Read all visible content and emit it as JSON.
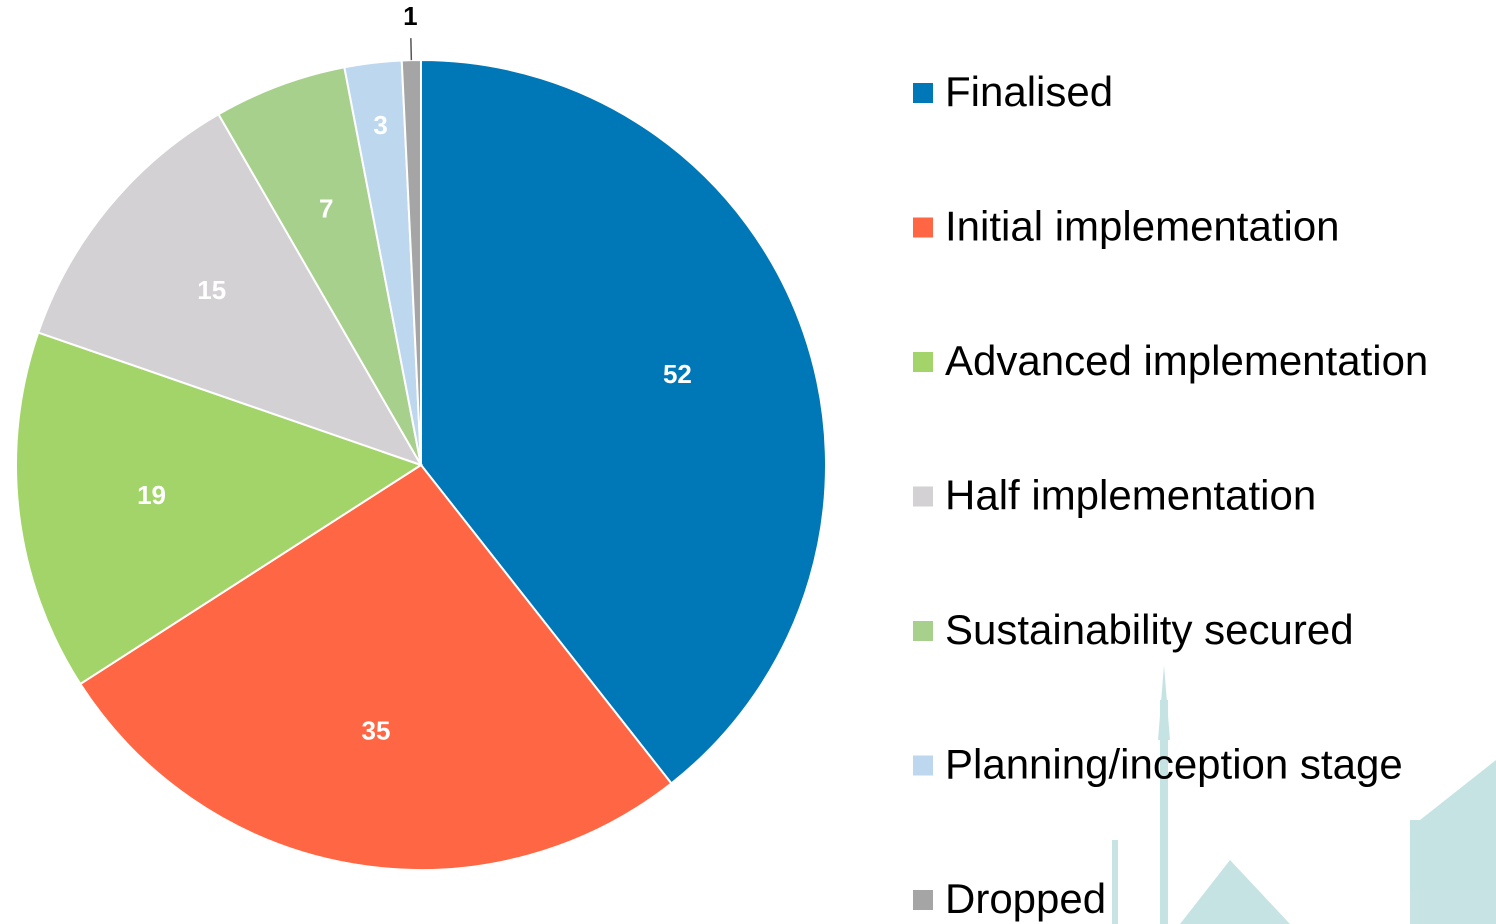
{
  "chart_data": {
    "type": "pie",
    "categories": [
      "Finalised",
      "Initial implementation",
      "Advanced implementation",
      "Half implementation",
      "Sustainability secured",
      "Planning/inception stage",
      "Dropped"
    ],
    "values": [
      52,
      35,
      19,
      15,
      7,
      3,
      1
    ],
    "colors": [
      "#0077b6",
      "#ff6644",
      "#a2d469",
      "#d3d1d3",
      "#a8d08d",
      "#bdd7ee",
      "#a5a5a5"
    ],
    "legend": "right"
  }
}
